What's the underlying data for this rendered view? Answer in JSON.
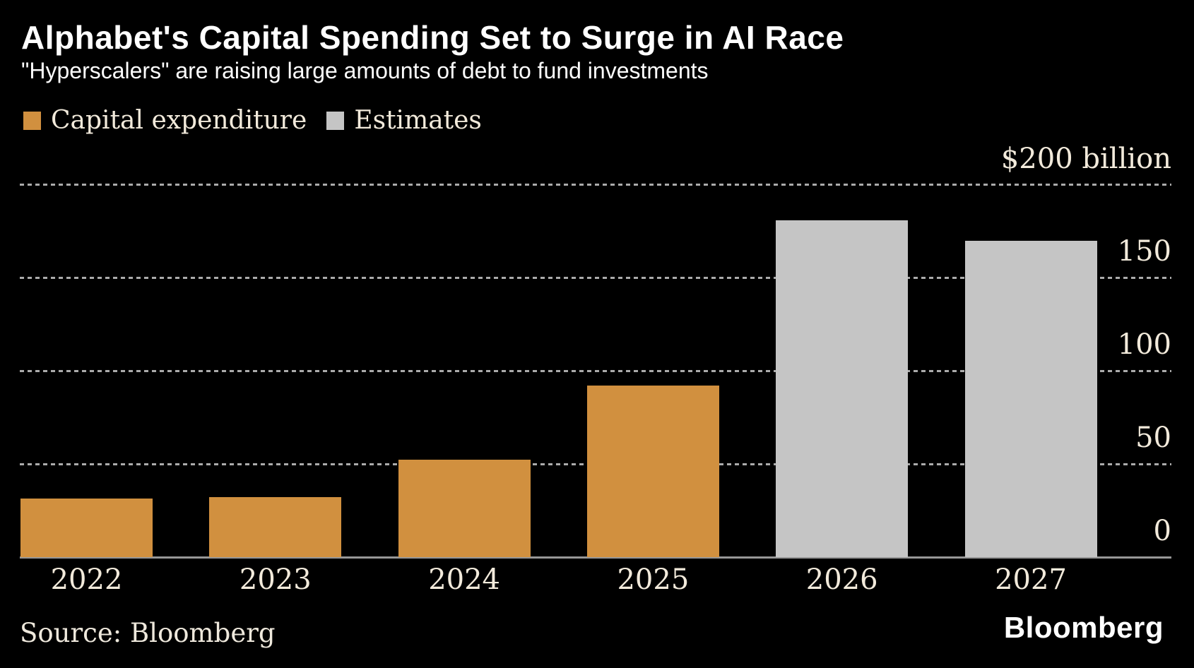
{
  "header": {
    "title": "Alphabet's Capital Spending Set to Surge in AI Race",
    "subtitle": "\"Hyperscalers\" are raising large amounts of debt to fund investments"
  },
  "legend": {
    "items": [
      {
        "key": "capex",
        "label": "Capital expenditure",
        "color": "#d1903f"
      },
      {
        "key": "estimates",
        "label": "Estimates",
        "color": "#c5c5c5"
      }
    ]
  },
  "footer": {
    "source": "Source: Bloomberg",
    "brand": "Bloomberg"
  },
  "colors": {
    "background": "#000000",
    "title_text": "#ffffff",
    "subtitle_text": "#fdfdfd",
    "tick_text": "#f2eadb",
    "grid_dotted": "#ababab",
    "axis_line": "#979797",
    "capex_bar": "#d1903f",
    "estimate_bar": "#c5c5c5"
  },
  "chart_data": {
    "type": "bar",
    "title": "Alphabet's Capital Spending Set to Surge in AI Race",
    "subtitle": "\"Hyperscalers\" are raising large amounts of debt to fund investments",
    "unit": "USD billions",
    "categories": [
      "2022",
      "2023",
      "2024",
      "2025",
      "2026",
      "2027"
    ],
    "series": [
      {
        "name": "Capital expenditure",
        "values": [
          31.5,
          32.3,
          52.5,
          92,
          null,
          null
        ]
      },
      {
        "name": "Estimates",
        "values": [
          null,
          null,
          null,
          null,
          181,
          170
        ]
      }
    ],
    "ylim": [
      0,
      200
    ],
    "yticks": [
      {
        "value": 200,
        "label": "$200 billion"
      },
      {
        "value": 150,
        "label": "150"
      },
      {
        "value": 100,
        "label": "100"
      },
      {
        "value": 50,
        "label": "50"
      },
      {
        "value": 0,
        "label": "0"
      }
    ],
    "ytick_side": "right",
    "grid": "horizontal-dotted",
    "legend_position": "top-left",
    "source": "Bloomberg"
  }
}
